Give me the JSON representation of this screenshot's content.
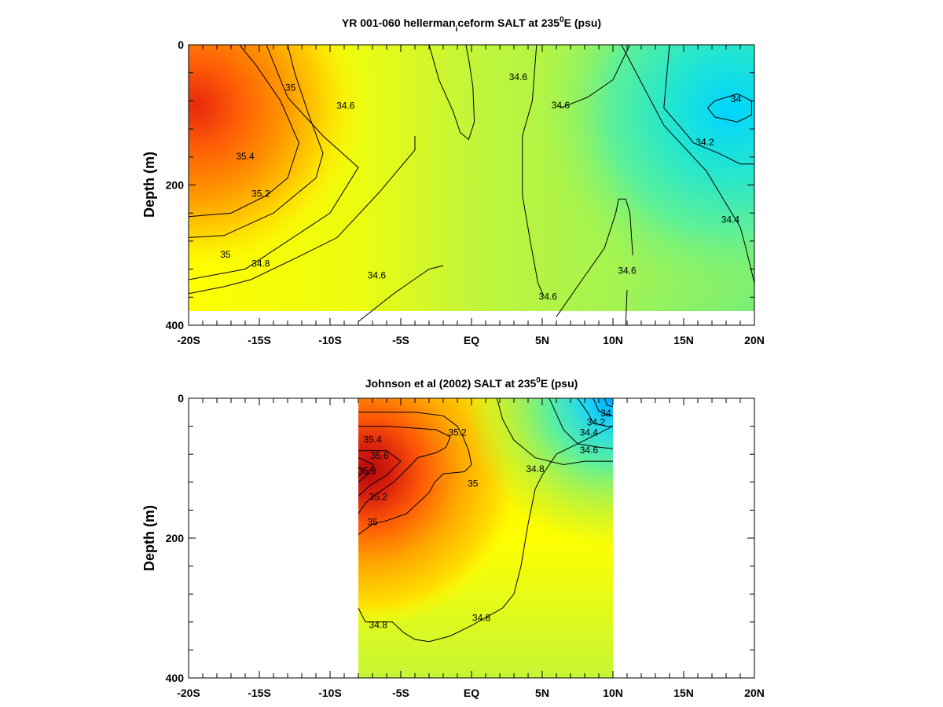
{
  "chart_data": [
    {
      "type": "contour",
      "title": {
        "main": "YR 001-060 hellerman",
        "sub": "i",
        "mid": "ceform SALT at 235",
        "sup": "0",
        "end": "E (psu)"
      },
      "xlabel": "",
      "ylabel": "Depth (m)",
      "x_tick_labels": [
        "-20S",
        "-15S",
        "-10S",
        "-5S",
        "EQ",
        "5N",
        "10N",
        "15N",
        "20N"
      ],
      "x_ticks": [
        -20,
        -15,
        -10,
        -5,
        0,
        5,
        10,
        15,
        20
      ],
      "y_tick_labels": [
        "0",
        "200",
        "400"
      ],
      "y_ticks": [
        0,
        200,
        400
      ],
      "xlim": [
        -20,
        20
      ],
      "ylim": [
        400,
        0
      ],
      "data_extent": {
        "x": [
          -20,
          20
        ],
        "depth": [
          0,
          380
        ]
      },
      "colormap": [
        "#00d8ff",
        "#5ef08c",
        "#b6f53c",
        "#e3fb22",
        "#ffff00",
        "#ffd800",
        "#ffac00",
        "#ff7a00",
        "#f03c0a",
        "#c50f0f"
      ],
      "colormap_range": [
        34.0,
        35.8
      ],
      "contour_labels": [
        {
          "text": "35",
          "x": -12.8,
          "y": 62
        },
        {
          "text": "34.6",
          "x": -8.9,
          "y": 88
        },
        {
          "text": "34.6",
          "x": 3.3,
          "y": 47
        },
        {
          "text": "34.6",
          "x": 6.3,
          "y": 87
        },
        {
          "text": "34",
          "x": 18.7,
          "y": 78
        },
        {
          "text": "35.4",
          "x": -16.0,
          "y": 160
        },
        {
          "text": "34.2",
          "x": 16.5,
          "y": 140
        },
        {
          "text": "35.2",
          "x": -14.9,
          "y": 213
        },
        {
          "text": "34.4",
          "x": 18.3,
          "y": 250
        },
        {
          "text": "35",
          "x": -17.4,
          "y": 300
        },
        {
          "text": "34.8",
          "x": -14.9,
          "y": 313
        },
        {
          "text": "34.6",
          "x": -6.7,
          "y": 330
        },
        {
          "text": "34.6",
          "x": 11.0,
          "y": 323
        },
        {
          "text": "34.6",
          "x": 5.4,
          "y": 360
        }
      ],
      "contours": [
        [
          [
            -20,
            245
          ],
          [
            -17,
            240
          ],
          [
            -14.5,
            215
          ],
          [
            -13,
            190
          ],
          [
            -12.2,
            140
          ],
          [
            -13.5,
            80
          ],
          [
            -15.2,
            30
          ],
          [
            -16.4,
            0
          ]
        ],
        [
          [
            -20,
            275
          ],
          [
            -17.5,
            272
          ],
          [
            -14,
            240
          ],
          [
            -11,
            190
          ],
          [
            -10.5,
            155
          ],
          [
            -11.5,
            100
          ],
          [
            -12.5,
            40
          ],
          [
            -13,
            0
          ]
        ],
        [
          [
            -20,
            335
          ],
          [
            -16,
            320
          ],
          [
            -10,
            240
          ],
          [
            -8,
            175
          ],
          [
            -10.5,
            130
          ],
          [
            -13,
            75
          ],
          [
            -13.9,
            30
          ],
          [
            -14.5,
            0
          ]
        ],
        [
          [
            -20,
            355
          ],
          [
            -17.5,
            345
          ],
          [
            -15.6,
            335
          ],
          [
            -12,
            300
          ],
          [
            -9.5,
            275
          ],
          [
            -6.5,
            210
          ],
          [
            -4,
            150
          ],
          [
            -4,
            130
          ]
        ],
        [
          [
            -8,
            395
          ],
          [
            -5.5,
            355
          ],
          [
            -3,
            320
          ],
          [
            -2,
            315
          ]
        ],
        [
          [
            -3,
            0
          ],
          [
            -2.3,
            50
          ],
          [
            -1.3,
            95
          ],
          [
            -0.8,
            125
          ],
          [
            -0.2,
            135
          ],
          [
            0.2,
            110
          ],
          [
            0.1,
            60
          ],
          [
            -0.2,
            20
          ],
          [
            -0.4,
            0
          ]
        ],
        [
          [
            4.6,
            0
          ],
          [
            4.3,
            80
          ],
          [
            3.6,
            130
          ],
          [
            3.6,
            215
          ],
          [
            4.2,
            285
          ],
          [
            4.7,
            340
          ],
          [
            5.1,
            358
          ]
        ],
        [
          [
            11,
            350
          ],
          [
            10.9,
            400
          ]
        ],
        [
          [
            6,
            388
          ],
          [
            8,
            330
          ],
          [
            9.4,
            290
          ],
          [
            10.2,
            240
          ],
          [
            10.4,
            220
          ],
          [
            10.9,
            220
          ],
          [
            11.2,
            240
          ],
          [
            11.4,
            300
          ]
        ],
        [
          [
            6.3,
            90
          ],
          [
            8.2,
            75
          ],
          [
            10,
            50
          ],
          [
            11.2,
            0
          ]
        ],
        [
          [
            14,
            0
          ],
          [
            13.6,
            90
          ],
          [
            15.3,
            130
          ],
          [
            15.7,
            140
          ],
          [
            17.5,
            155
          ],
          [
            19,
            170
          ],
          [
            20,
            170
          ]
        ],
        [
          [
            17.2,
            80
          ],
          [
            16.7,
            90
          ],
          [
            17.2,
            103
          ],
          [
            18.8,
            110
          ],
          [
            19.8,
            100
          ],
          [
            19.8,
            80
          ],
          [
            18.8,
            70
          ],
          [
            17.2,
            80
          ]
        ],
        [
          [
            10.6,
            0
          ],
          [
            13.6,
            115
          ],
          [
            16.6,
            180
          ],
          [
            17.8,
            220
          ],
          [
            19,
            260
          ],
          [
            19.4,
            290
          ],
          [
            20,
            340
          ]
        ]
      ]
    },
    {
      "type": "contour",
      "title": {
        "main": "Johnson et al (2002) SALT at 235",
        "sup": "0",
        "end": "E (psu)"
      },
      "xlabel": "",
      "ylabel": "Depth (m)",
      "x_tick_labels": [
        "-20S",
        "-15S",
        "-10S",
        "-5S",
        "EQ",
        "5N",
        "10N",
        "15N",
        "20N"
      ],
      "x_ticks": [
        -20,
        -15,
        -10,
        -5,
        0,
        5,
        10,
        15,
        20
      ],
      "y_tick_labels": [
        "0",
        "200",
        "400"
      ],
      "y_ticks": [
        0,
        200,
        400
      ],
      "xlim": [
        -20,
        20
      ],
      "ylim": [
        400,
        0
      ],
      "data_extent": {
        "x": [
          -8,
          10
        ],
        "depth": [
          0,
          400
        ]
      },
      "colormap": [
        "#00d8ff",
        "#5ef08c",
        "#b6f53c",
        "#e3fb22",
        "#ffff00",
        "#ffd800",
        "#ffac00",
        "#ff7a00",
        "#f03c0a",
        "#c50f0f"
      ],
      "colormap_range": [
        34.0,
        35.8
      ],
      "contour_labels": [
        {
          "text": "35.4",
          "x": -7.0,
          "y": 60
        },
        {
          "text": "35.2",
          "x": -1.0,
          "y": 50
        },
        {
          "text": "35.6",
          "x": -6.5,
          "y": 83
        },
        {
          "text": "34",
          "x": 9.5,
          "y": 22
        },
        {
          "text": "34.2",
          "x": 8.8,
          "y": 35
        },
        {
          "text": "34.4",
          "x": 8.3,
          "y": 50
        },
        {
          "text": "34.6",
          "x": 8.3,
          "y": 75
        },
        {
          "text": "34.8",
          "x": 4.5,
          "y": 102
        },
        {
          "text": "35.8",
          "x": -7.4,
          "y": 105
        },
        {
          "text": "35",
          "x": 0.1,
          "y": 123
        },
        {
          "text": "35.2",
          "x": -6.6,
          "y": 142
        },
        {
          "text": "35",
          "x": -7.0,
          "y": 178
        },
        {
          "text": "34.8",
          "x": 0.7,
          "y": 315
        },
        {
          "text": "34.8",
          "x": -6.6,
          "y": 325
        }
      ],
      "contours": [
        [
          [
            -8,
            300
          ],
          [
            -7.5,
            320
          ],
          [
            -5.6,
            320
          ],
          [
            -4.8,
            335
          ],
          [
            -4,
            345
          ],
          [
            -3,
            348
          ],
          [
            -1.5,
            340
          ],
          [
            0,
            325
          ],
          [
            2.2,
            300
          ],
          [
            3,
            280
          ],
          [
            3.5,
            240
          ],
          [
            4,
            180
          ],
          [
            4.5,
            130
          ],
          [
            5,
            110
          ],
          [
            6,
            80
          ],
          [
            8,
            60
          ],
          [
            10,
            40
          ]
        ],
        [
          [
            -8,
            195
          ],
          [
            -7,
            180
          ],
          [
            -6,
            175
          ],
          [
            -4.6,
            165
          ],
          [
            -3,
            135
          ],
          [
            -2.6,
            120
          ],
          [
            -2,
            108
          ],
          [
            -0.5,
            105
          ],
          [
            0,
            95
          ],
          [
            -0.2,
            75
          ],
          [
            -0.6,
            55
          ],
          [
            -1,
            40
          ],
          [
            -2,
            25
          ],
          [
            -4,
            20
          ],
          [
            -6.5,
            20
          ],
          [
            -8,
            20
          ]
        ],
        [
          [
            -8,
            165
          ],
          [
            -7.5,
            150
          ],
          [
            -6.8,
            138
          ],
          [
            -5.5,
            120
          ],
          [
            -4.5,
            100
          ],
          [
            -3.8,
            85
          ],
          [
            -2.5,
            78
          ],
          [
            -1.8,
            70
          ],
          [
            -1.5,
            55
          ],
          [
            -2.5,
            45
          ],
          [
            -4.5,
            42
          ],
          [
            -6,
            40
          ],
          [
            -8,
            40
          ]
        ],
        [
          [
            -8,
            140
          ],
          [
            -7.2,
            125
          ],
          [
            -6,
            110
          ],
          [
            -5,
            90
          ],
          [
            -6,
            75
          ],
          [
            -8,
            75
          ]
        ],
        [
          [
            -8,
            120
          ],
          [
            -7.4,
            110
          ],
          [
            -6.9,
            95
          ],
          [
            -8,
            85
          ]
        ],
        [
          [
            -8,
            112
          ],
          [
            -7.6,
            103
          ],
          [
            -8,
            98
          ]
        ],
        [
          [
            1.8,
            0
          ],
          [
            2.2,
            30
          ],
          [
            3,
            60
          ],
          [
            4.5,
            85
          ],
          [
            6.5,
            95
          ],
          [
            8,
            90
          ],
          [
            10,
            90
          ]
        ],
        [
          [
            5.5,
            0
          ],
          [
            6.5,
            45
          ],
          [
            7.5,
            65
          ],
          [
            9,
            70
          ],
          [
            10,
            72
          ]
        ],
        [
          [
            7.5,
            0
          ],
          [
            8.2,
            20
          ],
          [
            8.6,
            35
          ],
          [
            9.5,
            40
          ],
          [
            10,
            40
          ]
        ],
        [
          [
            8.6,
            0
          ],
          [
            9,
            18
          ],
          [
            9.6,
            25
          ],
          [
            10,
            25
          ]
        ],
        [
          [
            9.4,
            0
          ],
          [
            9.6,
            10
          ],
          [
            10,
            12
          ]
        ]
      ]
    }
  ]
}
